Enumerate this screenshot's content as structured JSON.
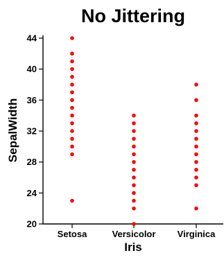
{
  "chart_data": {
    "type": "scatter",
    "title": "No Jittering",
    "xlabel": "Iris",
    "ylabel": "SepalWidth",
    "categories": [
      "Setosa",
      "Versicolor",
      "Virginica"
    ],
    "ylim": [
      20,
      44
    ],
    "yticks": [
      20,
      24,
      28,
      32,
      36,
      40,
      44
    ],
    "grid": false,
    "legend": "none",
    "marker_color": "#ff0000",
    "series": [
      {
        "category": "Setosa",
        "values": [
          23,
          29,
          30,
          31,
          32,
          33,
          34,
          35,
          36,
          37,
          38,
          39,
          40,
          41,
          42,
          44
        ]
      },
      {
        "category": "Versicolor",
        "values": [
          20,
          22,
          23,
          24,
          25,
          26,
          27,
          28,
          29,
          30,
          31,
          32,
          33,
          34
        ]
      },
      {
        "category": "Virginica",
        "values": [
          22,
          25,
          26,
          27,
          28,
          29,
          30,
          31,
          32,
          33,
          34,
          36,
          38
        ]
      }
    ]
  }
}
